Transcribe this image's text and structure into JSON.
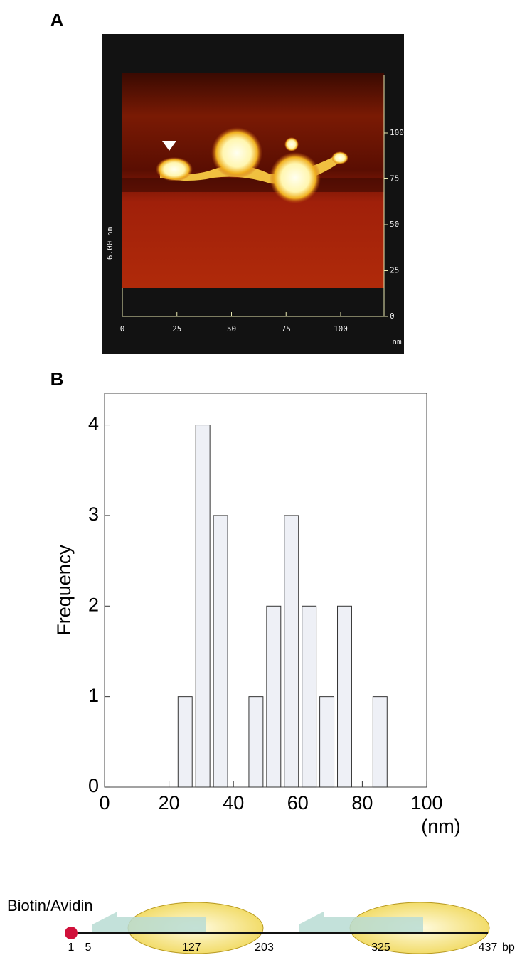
{
  "chart_data": [
    {
      "type": "image",
      "label": "A",
      "xlim": [
        0,
        100
      ],
      "ylim": [
        0,
        100
      ],
      "xticks": [
        0,
        25,
        50,
        75,
        100
      ],
      "yticks": [
        0,
        25,
        50,
        75,
        100
      ],
      "z_label": "6.00 nm",
      "x_unit": "nm"
    },
    {
      "type": "histogram",
      "label": "B",
      "y_label": "Frequency",
      "x_label": "(nm)",
      "bins": [
        22.25,
        27.75,
        33.25,
        38.75,
        44.25,
        49.75,
        55.25,
        60.75,
        66.25,
        71.75,
        77.25,
        82.75,
        88.25
      ],
      "values": [
        1,
        4,
        3,
        0,
        1,
        2,
        3,
        2,
        1,
        2,
        0,
        1
      ],
      "color": "#eef0f6",
      "xlim": [
        0,
        100
      ],
      "ylim": [
        0,
        4.35
      ],
      "xticks": [
        0,
        20,
        40,
        60,
        80,
        100
      ],
      "yticks": [
        0,
        1,
        2,
        3,
        4
      ]
    },
    {
      "type": "map",
      "label": "Biotin/Avidin",
      "positions": [
        1,
        5,
        127,
        203,
        325,
        437
      ],
      "unit": "bp",
      "xlim": [
        1,
        437
      ]
    }
  ]
}
